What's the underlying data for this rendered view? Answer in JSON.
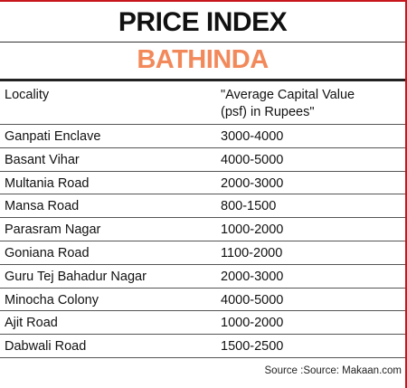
{
  "title": "PRICE INDEX",
  "subtitle": "BATHINDA",
  "table": {
    "col1_header": "Locality",
    "col2_header_line1": "\"Average Capital Value",
    "col2_header_line2": "(psf) in Rupees\"",
    "rows": [
      {
        "locality": "Ganpati Enclave",
        "value": "3000-4000"
      },
      {
        "locality": "Basant Vihar",
        "value": "4000-5000"
      },
      {
        "locality": "Multania Road",
        "value": "2000-3000"
      },
      {
        "locality": "Mansa Road",
        "value": "800-1500"
      },
      {
        "locality": "Parasram Nagar",
        "value": "1000-2000"
      },
      {
        "locality": "Goniana Road",
        "value": "1100-2000"
      },
      {
        "locality": "Guru Tej Bahadur Nagar",
        "value": "2000-3000"
      },
      {
        "locality": "Minocha Colony",
        "value": "4000-5000"
      },
      {
        "locality": "Ajit Road",
        "value": "1000-2000"
      },
      {
        "locality": "Dabwali Road",
        "value": "1500-2500"
      }
    ]
  },
  "source": "Source :Source: Makaan.com",
  "colors": {
    "accent": "#c8161d",
    "subtitle": "#f2895a"
  }
}
